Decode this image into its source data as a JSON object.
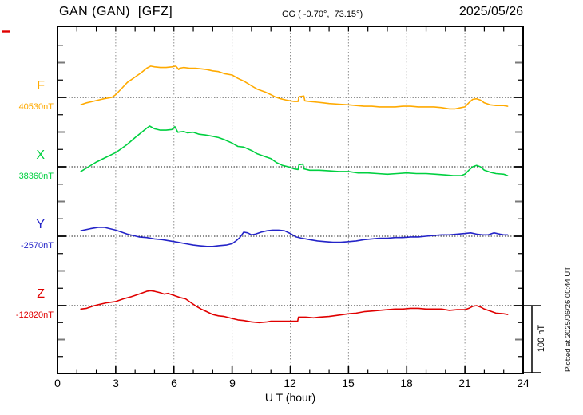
{
  "header": {
    "station_title": "GAN (GAN)  [GFZ]",
    "gg_coords": "GG ( -0.70°,  73.15°)",
    "date": "2025/05/26"
  },
  "axis": {
    "x_label": "U T (hour)",
    "x_ticks": [
      "0",
      "3",
      "6",
      "9",
      "12",
      "15",
      "18",
      "21",
      "24"
    ],
    "x_range_hours": [
      0,
      24
    ]
  },
  "scale_bar": {
    "label": "100 nT",
    "nT": 100
  },
  "plotted_at": "Plotted at 2025/06/26 00:44 UT",
  "colors": {
    "F": "#ffaa00",
    "X": "#00d040",
    "Y": "#2424c8",
    "Z": "#e00000",
    "frame": "#000000",
    "grid": "#909090",
    "baseline_dots": "#222222",
    "minor_tick": "#000000",
    "major_tick_gray": "#7a7a7a",
    "edge_marker": "#e00000"
  },
  "chart_data": {
    "type": "line",
    "title": "GAN (GAN) [GFZ] magnetogram 2025/05/26",
    "xlabel": "U T (hour)",
    "x_unit": "hour",
    "xlim": [
      0,
      24
    ],
    "grid_hours": [
      3,
      6,
      9,
      12,
      15,
      18,
      21
    ],
    "scale_bar_nT": 100,
    "series": [
      {
        "name": "F",
        "baseline_label": "40530nT",
        "baseline_nT": 40530,
        "color": "#ffaa00",
        "x": [
          1.2,
          1.5,
          1.8,
          2.1,
          2.4,
          2.8,
          3.0,
          3.3,
          3.6,
          4.0,
          4.3,
          4.6,
          4.8,
          5.0,
          5.3,
          5.6,
          5.9,
          6.1,
          6.25,
          6.3,
          6.5,
          6.8,
          7.1,
          7.4,
          7.7,
          8.0,
          8.3,
          8.6,
          9.0,
          9.3,
          9.6,
          10.0,
          10.3,
          10.7,
          11.0,
          11.2,
          11.5,
          11.8,
          12.0,
          12.2,
          12.4,
          12.45,
          12.7,
          12.75,
          13.0,
          13.4,
          13.7,
          14.0,
          14.5,
          15.0,
          15.4,
          15.8,
          16.2,
          16.6,
          17.0,
          17.4,
          17.8,
          18.2,
          18.6,
          19.0,
          19.4,
          19.8,
          20.2,
          20.5,
          20.8,
          21.0,
          21.2,
          21.4,
          21.6,
          21.8,
          22.0,
          22.3,
          22.6,
          23.0,
          23.2
        ],
        "dy_nT": [
          -11,
          -8,
          -6,
          -4,
          -2,
          0,
          4,
          13,
          22,
          30,
          36,
          43,
          46,
          45,
          44,
          44,
          45,
          46,
          41,
          43,
          44,
          43,
          43,
          42,
          41,
          39,
          38,
          35,
          33,
          28,
          24,
          17,
          12,
          8,
          4,
          1,
          -2,
          -4,
          -5,
          -6,
          -6,
          1,
          2,
          -5,
          -6,
          -7,
          -8,
          -9,
          -10,
          -11,
          -12,
          -13,
          -13,
          -14,
          -14,
          -14,
          -13,
          -13,
          -14,
          -14,
          -14,
          -15,
          -17,
          -17,
          -15,
          -14,
          -8,
          -3,
          -2,
          -4,
          -8,
          -11,
          -12,
          -12,
          -13
        ]
      },
      {
        "name": "X",
        "baseline_label": "38360nT",
        "baseline_nT": 38360,
        "color": "#00d040",
        "x": [
          1.2,
          1.6,
          2.0,
          2.5,
          3.0,
          3.3,
          3.6,
          4.0,
          4.3,
          4.6,
          4.75,
          5.0,
          5.3,
          5.6,
          5.9,
          6.05,
          6.2,
          6.5,
          6.7,
          7.0,
          7.3,
          7.6,
          8.0,
          8.3,
          8.6,
          9.0,
          9.3,
          9.6,
          10.0,
          10.3,
          10.7,
          11.0,
          11.3,
          11.6,
          11.9,
          12.2,
          12.4,
          12.45,
          12.65,
          12.7,
          13.0,
          13.5,
          14.0,
          14.5,
          15.0,
          15.5,
          16.0,
          16.5,
          17.0,
          17.5,
          18.0,
          18.5,
          19.0,
          19.5,
          20.0,
          20.4,
          20.8,
          21.0,
          21.2,
          21.4,
          21.6,
          21.8,
          22.0,
          22.3,
          22.6,
          23.0,
          23.2
        ],
        "dy_nT": [
          -7,
          0,
          7,
          14,
          21,
          27,
          33,
          43,
          50,
          57,
          60,
          56,
          54,
          54,
          55,
          59,
          51,
          52,
          50,
          51,
          48,
          47,
          45,
          43,
          40,
          35,
          30,
          29,
          24,
          19,
          15,
          12,
          6,
          2,
          0,
          -3,
          -4,
          3,
          4,
          -3,
          -5,
          -5,
          -6,
          -7,
          -7,
          -9,
          -9,
          -10,
          -11,
          -10,
          -9,
          -10,
          -10,
          -11,
          -12,
          -13,
          -13,
          -11,
          -5,
          0,
          2,
          0,
          -5,
          -8,
          -10,
          -11,
          -13
        ]
      },
      {
        "name": "Y",
        "baseline_label": "-2570nT",
        "baseline_nT": -2570,
        "color": "#2424c8",
        "x": [
          1.2,
          1.7,
          2.1,
          2.4,
          2.7,
          3.0,
          3.3,
          3.6,
          3.9,
          4.2,
          4.6,
          5.0,
          5.4,
          5.8,
          6.2,
          6.6,
          7.0,
          7.3,
          7.7,
          8.0,
          8.3,
          8.7,
          9.0,
          9.2,
          9.4,
          9.6,
          9.8,
          10.0,
          10.2,
          10.5,
          10.8,
          11.1,
          11.4,
          11.7,
          12.0,
          12.3,
          12.6,
          13.0,
          13.4,
          13.8,
          14.2,
          14.6,
          15.0,
          15.4,
          15.8,
          16.2,
          16.6,
          17.0,
          17.4,
          17.8,
          18.2,
          18.6,
          19.0,
          19.4,
          19.8,
          20.2,
          20.6,
          21.0,
          21.3,
          21.6,
          21.9,
          22.2,
          22.5,
          22.8,
          23.0,
          23.2
        ],
        "dy_nT": [
          8,
          11,
          13,
          13,
          11,
          9,
          6,
          3,
          1,
          -1,
          -2,
          -4,
          -5,
          -7,
          -9,
          -11,
          -13,
          -14,
          -15,
          -15,
          -14,
          -13,
          -11,
          -7,
          -2,
          6,
          5,
          2,
          3,
          6,
          8,
          9,
          9,
          8,
          4,
          -1,
          -3,
          -5,
          -7,
          -8,
          -9,
          -9,
          -8,
          -7,
          -5,
          -4,
          -3,
          -3,
          -2,
          -2,
          -1,
          -1,
          0,
          1,
          2,
          2,
          3,
          4,
          5,
          3,
          2,
          2,
          5,
          3,
          2,
          2
        ]
      },
      {
        "name": "Z",
        "baseline_label": "-12820nT",
        "baseline_nT": -12820,
        "color": "#e00000",
        "x": [
          1.2,
          1.5,
          1.9,
          2.2,
          2.5,
          3.0,
          3.4,
          3.8,
          4.2,
          4.6,
          4.8,
          5.0,
          5.3,
          5.5,
          5.7,
          6.0,
          6.3,
          6.6,
          6.9,
          7.1,
          7.4,
          7.7,
          8.0,
          8.3,
          8.6,
          9.0,
          9.3,
          9.6,
          10.0,
          10.4,
          10.8,
          11.0,
          11.3,
          11.6,
          12.0,
          12.2,
          12.38,
          12.42,
          12.8,
          13.2,
          13.5,
          14.0,
          14.5,
          15.0,
          15.4,
          15.8,
          16.2,
          16.6,
          17.0,
          17.4,
          17.8,
          18.2,
          18.6,
          19.0,
          19.4,
          19.8,
          20.2,
          20.6,
          21.0,
          21.2,
          21.4,
          21.6,
          21.8,
          22.0,
          22.3,
          22.6,
          23.0,
          23.2
        ],
        "dy_nT": [
          -5,
          -4,
          0,
          2,
          4,
          6,
          10,
          13,
          17,
          21,
          22,
          21,
          19,
          17,
          18,
          15,
          12,
          10,
          4,
          0,
          -5,
          -9,
          -13,
          -15,
          -16,
          -19,
          -21,
          -22,
          -24,
          -25,
          -24,
          -23,
          -23,
          -23,
          -23,
          -23,
          -23,
          -17,
          -17,
          -18,
          -17,
          -16,
          -14,
          -12,
          -11,
          -9,
          -8,
          -7,
          -6,
          -5,
          -5,
          -4,
          -4,
          -5,
          -5,
          -5,
          -7,
          -6,
          -6,
          -4,
          -1,
          0,
          -2,
          -5,
          -8,
          -11,
          -12,
          -13
        ]
      }
    ]
  }
}
